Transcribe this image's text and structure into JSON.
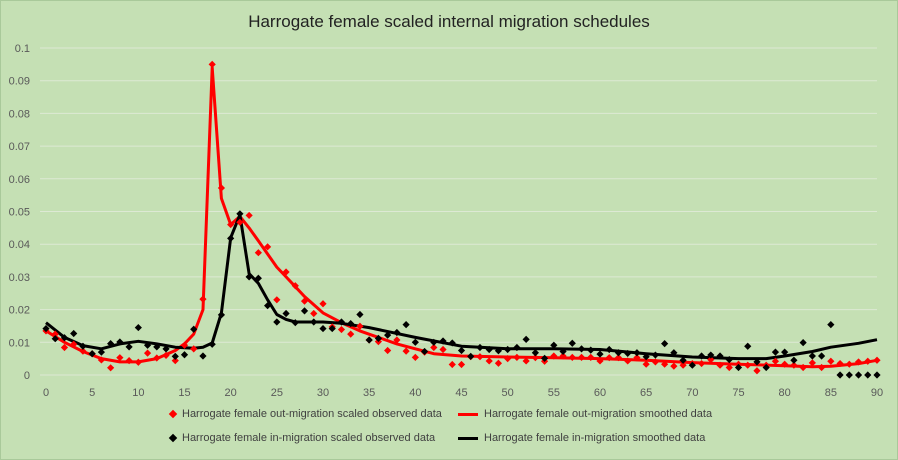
{
  "chart_data": {
    "type": "line",
    "title": "Harrogate female scaled internal migration schedules",
    "xlabel": "",
    "ylabel": "",
    "xlim": [
      0,
      90
    ],
    "ylim": [
      0,
      0.1
    ],
    "x_ticks": [
      "0",
      "5",
      "10",
      "15",
      "20",
      "25",
      "30",
      "35",
      "40",
      "45",
      "50",
      "55",
      "60",
      "65",
      "70",
      "75",
      "80",
      "85",
      "90"
    ],
    "y_ticks": [
      "0",
      "0.01",
      "0.02",
      "0.03",
      "0.04",
      "0.05",
      "0.06",
      "0.07",
      "0.08",
      "0.09",
      "0.1"
    ],
    "grid": "horizontal",
    "legend_position": "bottom",
    "series": [
      {
        "name": "Harrogate female out-migration scaled observed data",
        "style": "markers",
        "color": "#ff0000",
        "x": [
          0,
          1,
          2,
          3,
          4,
          5,
          6,
          7,
          8,
          9,
          10,
          11,
          12,
          13,
          14,
          15,
          16,
          17,
          18,
          19,
          20,
          21,
          22,
          23,
          24,
          25,
          26,
          27,
          28,
          29,
          30,
          31,
          32,
          33,
          34,
          35,
          36,
          37,
          38,
          39,
          40,
          41,
          42,
          43,
          44,
          45,
          46,
          47,
          48,
          49,
          50,
          51,
          52,
          53,
          54,
          55,
          56,
          57,
          58,
          59,
          60,
          61,
          62,
          63,
          64,
          65,
          66,
          67,
          68,
          69,
          70,
          71,
          72,
          73,
          74,
          75,
          76,
          77,
          78,
          79,
          80,
          81,
          82,
          83,
          84,
          85,
          86,
          87,
          88,
          89,
          90
        ],
        "y": [
          0.0135,
          0.0125,
          0.0084,
          0.0094,
          0.0073,
          0.0065,
          0.0046,
          0.0022,
          0.0053,
          0.0044,
          0.0039,
          0.0067,
          0.0052,
          0.006,
          0.0044,
          0.0091,
          0.008,
          0.0232,
          0.095,
          0.0572,
          0.046,
          0.0467,
          0.0488,
          0.0374,
          0.0392,
          0.023,
          0.0315,
          0.0273,
          0.0226,
          0.0188,
          0.0218,
          0.0147,
          0.0139,
          0.0125,
          0.0149,
          0.0107,
          0.0102,
          0.0075,
          0.0107,
          0.0073,
          0.0054,
          0.007,
          0.0084,
          0.0078,
          0.0032,
          0.0032,
          0.0056,
          0.0056,
          0.0043,
          0.0036,
          0.005,
          0.0054,
          0.0043,
          0.0053,
          0.0042,
          0.0058,
          0.0058,
          0.0054,
          0.0054,
          0.0054,
          0.0043,
          0.0053,
          0.0053,
          0.0043,
          0.0053,
          0.0033,
          0.004,
          0.0033,
          0.0027,
          0.003,
          0.0035,
          0.0035,
          0.0047,
          0.003,
          0.0023,
          0.0033,
          0.003,
          0.0013,
          0.003,
          0.0042,
          0.0033,
          0.003,
          0.0023,
          0.0037,
          0.0023,
          0.0042,
          0.0035,
          0.0033,
          0.004,
          0.0042,
          0.0045
        ]
      },
      {
        "name": "Harrogate female out-migration smoothed data",
        "style": "line",
        "color": "#ff0000",
        "x": [
          0,
          2,
          4,
          6,
          8,
          10,
          12,
          14,
          15,
          16,
          17,
          18,
          19,
          20,
          21,
          22,
          23,
          24,
          25,
          26,
          27,
          28,
          30,
          32,
          34,
          36,
          38,
          40,
          42,
          45,
          50,
          55,
          60,
          65,
          70,
          75,
          80,
          83,
          85,
          88,
          90
        ],
        "y": [
          0.0135,
          0.01,
          0.0072,
          0.005,
          0.004,
          0.004,
          0.005,
          0.0075,
          0.0095,
          0.0125,
          0.02,
          0.094,
          0.054,
          0.046,
          0.0485,
          0.045,
          0.041,
          0.037,
          0.033,
          0.03,
          0.027,
          0.024,
          0.019,
          0.016,
          0.0135,
          0.0115,
          0.0095,
          0.008,
          0.0065,
          0.0058,
          0.0055,
          0.0053,
          0.005,
          0.0045,
          0.0038,
          0.0033,
          0.0028,
          0.0025,
          0.0027,
          0.0035,
          0.0045
        ]
      },
      {
        "name": "Harrogate female in-migration scaled observed data",
        "style": "markers",
        "color": "#000000",
        "x": [
          0,
          1,
          2,
          3,
          4,
          5,
          6,
          7,
          8,
          9,
          10,
          11,
          12,
          13,
          14,
          15,
          16,
          17,
          18,
          19,
          20,
          21,
          22,
          23,
          24,
          25,
          26,
          27,
          28,
          29,
          30,
          31,
          32,
          33,
          34,
          35,
          36,
          37,
          38,
          39,
          40,
          41,
          42,
          43,
          44,
          45,
          46,
          47,
          48,
          49,
          50,
          51,
          52,
          53,
          54,
          55,
          56,
          57,
          58,
          59,
          60,
          61,
          62,
          63,
          64,
          65,
          66,
          67,
          68,
          69,
          70,
          71,
          72,
          73,
          74,
          75,
          76,
          77,
          78,
          79,
          80,
          81,
          82,
          83,
          84,
          85,
          86,
          87,
          88,
          89,
          90
        ],
        "y": [
          0.0142,
          0.0111,
          0.0114,
          0.0127,
          0.0088,
          0.0065,
          0.007,
          0.0096,
          0.0101,
          0.0086,
          0.0145,
          0.0091,
          0.0086,
          0.008,
          0.0057,
          0.0062,
          0.014,
          0.0058,
          0.0094,
          0.0184,
          0.0418,
          0.0493,
          0.03,
          0.0296,
          0.0212,
          0.0162,
          0.0188,
          0.016,
          0.0196,
          0.0162,
          0.0142,
          0.0142,
          0.0162,
          0.0157,
          0.0185,
          0.0107,
          0.0112,
          0.0122,
          0.013,
          0.0154,
          0.01,
          0.0072,
          0.01,
          0.0104,
          0.0098,
          0.0075,
          0.0057,
          0.0084,
          0.0078,
          0.0074,
          0.0078,
          0.0084,
          0.0109,
          0.0068,
          0.0051,
          0.0091,
          0.0072,
          0.0097,
          0.008,
          0.0076,
          0.0064,
          0.0078,
          0.0068,
          0.0066,
          0.0068,
          0.0056,
          0.0061,
          0.0096,
          0.0068,
          0.0045,
          0.003,
          0.0058,
          0.0061,
          0.0058,
          0.0047,
          0.0023,
          0.0088,
          0.004,
          0.0023,
          0.007,
          0.007,
          0.0045,
          0.0099,
          0.0058,
          0.0058,
          0.0154,
          0,
          0,
          0,
          0,
          0
        ]
      },
      {
        "name": "Harrogate female in-migration smoothed data",
        "style": "line",
        "color": "#000000",
        "x": [
          0,
          2,
          4,
          6,
          8,
          10,
          12,
          14,
          16,
          17,
          18,
          19,
          20,
          21,
          22,
          23,
          24,
          25,
          26,
          27,
          28,
          30,
          32,
          35,
          40,
          45,
          50,
          55,
          60,
          65,
          70,
          75,
          78,
          80,
          83,
          85,
          88,
          90
        ],
        "y": [
          0.016,
          0.0115,
          0.009,
          0.008,
          0.0095,
          0.0103,
          0.0095,
          0.0085,
          0.0082,
          0.0085,
          0.0098,
          0.019,
          0.042,
          0.049,
          0.031,
          0.028,
          0.023,
          0.0185,
          0.017,
          0.0162,
          0.0162,
          0.0162,
          0.0158,
          0.0145,
          0.0115,
          0.0088,
          0.008,
          0.008,
          0.0078,
          0.0065,
          0.0055,
          0.005,
          0.005,
          0.0058,
          0.0072,
          0.0085,
          0.0097,
          0.0108
        ]
      }
    ]
  }
}
